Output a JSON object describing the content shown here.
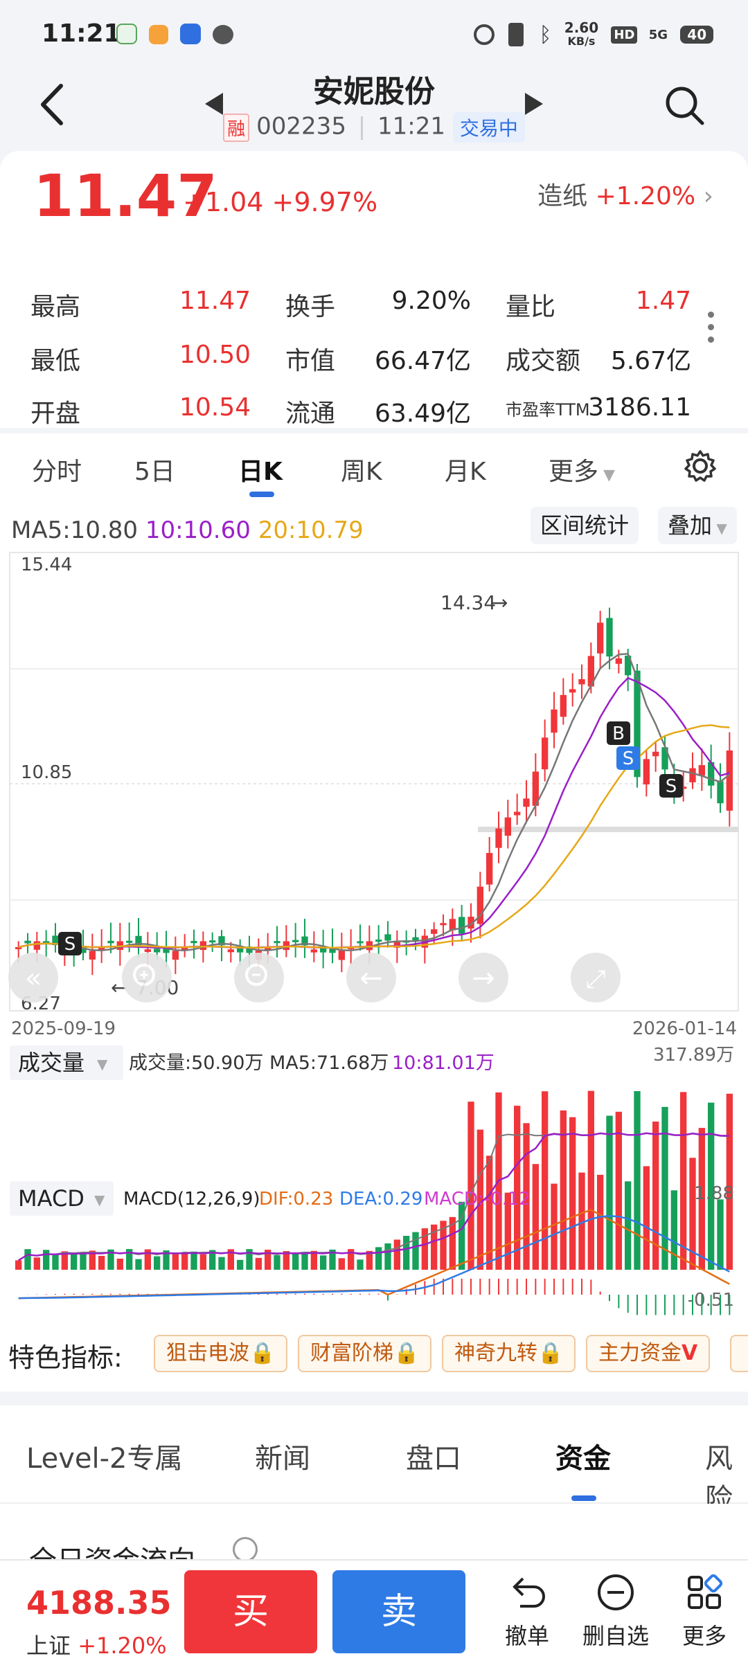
{
  "status_bar": {
    "time": "11:21",
    "net_speed_top": "2.60",
    "net_speed_bottom": "KB/s",
    "battery": "40",
    "hd": "HD",
    "sig": "5G"
  },
  "header": {
    "title": "安妮股份",
    "margin_badge": "融",
    "code": "002235",
    "time": "11:21",
    "state": "交易中"
  },
  "quote": {
    "price": "11.47",
    "change": "+1.04 +9.97%",
    "sector_name": "造纸",
    "sector_change": "+1.20%",
    "stats": [
      {
        "label": "最高",
        "value": "11.47",
        "color": "red"
      },
      {
        "label": "换手",
        "value": "9.20%",
        "color": "dark"
      },
      {
        "label": "量比",
        "value": "1.47",
        "color": "red"
      },
      {
        "label": "最低",
        "value": "10.50",
        "color": "red"
      },
      {
        "label": "市值",
        "value": "66.47亿",
        "color": "dark"
      },
      {
        "label": "成交额",
        "value": "5.67亿",
        "color": "dark"
      },
      {
        "label": "开盘",
        "value": "10.54",
        "color": "red"
      },
      {
        "label": "流通",
        "value": "63.49亿",
        "color": "dark"
      },
      {
        "label": "市盈率TTM",
        "value": "3186.11",
        "color": "dark"
      }
    ]
  },
  "period_tabs": [
    "分时",
    "5日",
    "日K",
    "周K",
    "月K",
    "更多"
  ],
  "ma": {
    "ma5": "MA5:10.80",
    "ma10": "10:10.60",
    "ma20": "20:10.79",
    "range_btn": "区间统计",
    "overlay_btn": "叠加"
  },
  "kline": {
    "y_top": "15.44",
    "y_mid": "10.85",
    "y_bottom": "6.27",
    "high_marker": "14.34",
    "low_marker": "7.00",
    "date_start": "2025-09-19",
    "date_end": "2026-01-14",
    "signals": [
      "S",
      "B",
      "S",
      "S"
    ]
  },
  "volume": {
    "selector": "成交量",
    "info": "成交量:50.90万 MA5:71.68万",
    "info_ma10": "10:81.01万",
    "max": "317.89万"
  },
  "macd": {
    "selector": "MACD",
    "params": "MACD(12,26,9)",
    "dif": "DIF:0.23",
    "dea": "DEA:0.29",
    "macd": "MACD:-0.12",
    "max": "1.88",
    "min": "-0.51"
  },
  "features": {
    "title": "特色指标:",
    "chips": [
      "狙击电波",
      "财富阶梯",
      "神奇九转",
      "主力资金"
    ]
  },
  "info_tabs": [
    "Level-2专属",
    "新闻",
    "盘口",
    "资金",
    "风险"
  ],
  "flow_title": "全日资金流向",
  "bottom": {
    "index_value": "4188.35",
    "index_name": "上证",
    "index_change": "+1.20%",
    "buy": "买",
    "sell": "卖",
    "cancel": "撤单",
    "remove_watch": "删自选",
    "more": "更多"
  }
}
